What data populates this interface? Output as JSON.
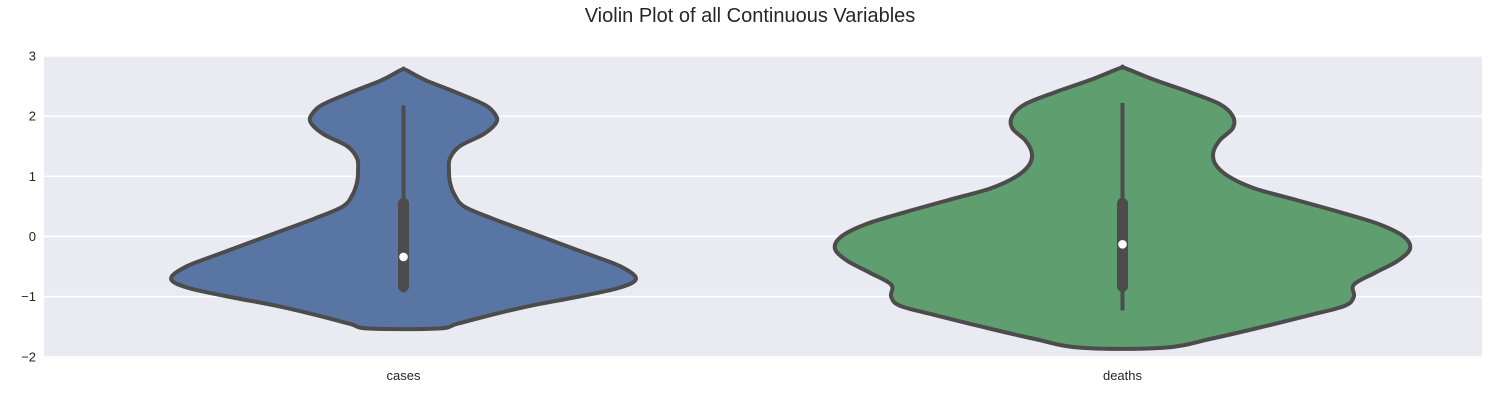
{
  "chart_data": {
    "type": "violin",
    "title": "Violin Plot of all Continuous Variables",
    "xlabel": "",
    "ylabel": "",
    "categories": [
      "cases",
      "deaths"
    ],
    "ylim": [
      -2.02,
      3
    ],
    "yticks": [
      -2,
      -1,
      0,
      1,
      2,
      3
    ],
    "grid": true,
    "background": "#eaeaf2",
    "series": [
      {
        "category": "cases",
        "color": "#5975a4",
        "median": -0.34,
        "q1": -0.83,
        "q3": 0.55,
        "whisker_low": -0.93,
        "whisker_high": 2.18,
        "min": -1.53,
        "max": 2.77,
        "density": [
          [
            2.77,
            0.02
          ],
          [
            2.6,
            0.2
          ],
          [
            2.4,
            0.48
          ],
          [
            2.2,
            0.74
          ],
          [
            2.05,
            0.84
          ],
          [
            1.9,
            0.86
          ],
          [
            1.7,
            0.74
          ],
          [
            1.5,
            0.52
          ],
          [
            1.3,
            0.43
          ],
          [
            1.1,
            0.42
          ],
          [
            0.9,
            0.43
          ],
          [
            0.7,
            0.47
          ],
          [
            0.5,
            0.56
          ],
          [
            0.3,
            0.82
          ],
          [
            0.1,
            1.12
          ],
          [
            -0.1,
            1.42
          ],
          [
            -0.3,
            1.72
          ],
          [
            -0.5,
            2.01
          ],
          [
            -0.7,
            2.15
          ],
          [
            -0.85,
            2.0
          ],
          [
            -1.0,
            1.62
          ],
          [
            -1.15,
            1.18
          ],
          [
            -1.3,
            0.82
          ],
          [
            -1.45,
            0.5
          ],
          [
            -1.53,
            0.32
          ]
        ]
      },
      {
        "category": "deaths",
        "color": "#5f9e6e",
        "median": -0.13,
        "q1": -0.83,
        "q3": 0.55,
        "whisker_low": -1.23,
        "whisker_high": 2.22,
        "min": -1.85,
        "max": 2.8,
        "density": [
          [
            2.8,
            0.02
          ],
          [
            2.6,
            0.3
          ],
          [
            2.4,
            0.62
          ],
          [
            2.2,
            0.9
          ],
          [
            2.0,
            1.02
          ],
          [
            1.8,
            1.02
          ],
          [
            1.6,
            0.9
          ],
          [
            1.4,
            0.84
          ],
          [
            1.2,
            0.86
          ],
          [
            1.0,
            0.98
          ],
          [
            0.8,
            1.22
          ],
          [
            0.6,
            1.62
          ],
          [
            0.4,
            2.02
          ],
          [
            0.2,
            2.38
          ],
          [
            0.0,
            2.6
          ],
          [
            -0.2,
            2.66
          ],
          [
            -0.4,
            2.55
          ],
          [
            -0.6,
            2.34
          ],
          [
            -0.8,
            2.14
          ],
          [
            -1.0,
            2.14
          ],
          [
            -1.15,
            2.06
          ],
          [
            -1.3,
            1.75
          ],
          [
            -1.5,
            1.3
          ],
          [
            -1.7,
            0.82
          ],
          [
            -1.85,
            0.38
          ]
        ]
      }
    ]
  }
}
